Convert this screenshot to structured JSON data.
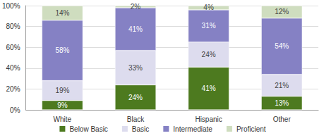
{
  "chart_data": {
    "type": "bar",
    "stacked": true,
    "data_labels": true,
    "grid": true,
    "legend": "bottom",
    "categories": [
      "White",
      "Black",
      "Hispanic",
      "Other"
    ],
    "series": [
      {
        "name": "Below Basic",
        "color": "#4d7a1f",
        "values": [
          9,
          24,
          41,
          13
        ],
        "value_labels": [
          "9%",
          "24%",
          "41%",
          "13%"
        ]
      },
      {
        "name": "Basic",
        "color": "#dddcee",
        "values": [
          19,
          33,
          24,
          21
        ],
        "value_labels": [
          "19%",
          "33%",
          "24%",
          "21%"
        ]
      },
      {
        "name": "Intermediate",
        "color": "#8581c4",
        "values": [
          58,
          41,
          31,
          54
        ],
        "value_labels": [
          "58%",
          "41%",
          "31%",
          "54%"
        ]
      },
      {
        "name": "Proficient",
        "color": "#cfddbf",
        "values": [
          14,
          2,
          4,
          12
        ],
        "value_labels": [
          "14%",
          "2%",
          "4%",
          "12%"
        ]
      }
    ],
    "ylim": [
      0,
      100
    ],
    "yticks": [
      {
        "value": 0,
        "label": "0%"
      },
      {
        "value": 20,
        "label": "20%"
      },
      {
        "value": 40,
        "label": "40%"
      },
      {
        "value": 60,
        "label": "60%"
      },
      {
        "value": 80,
        "label": "80%"
      },
      {
        "value": 100,
        "label": "100%"
      }
    ]
  }
}
